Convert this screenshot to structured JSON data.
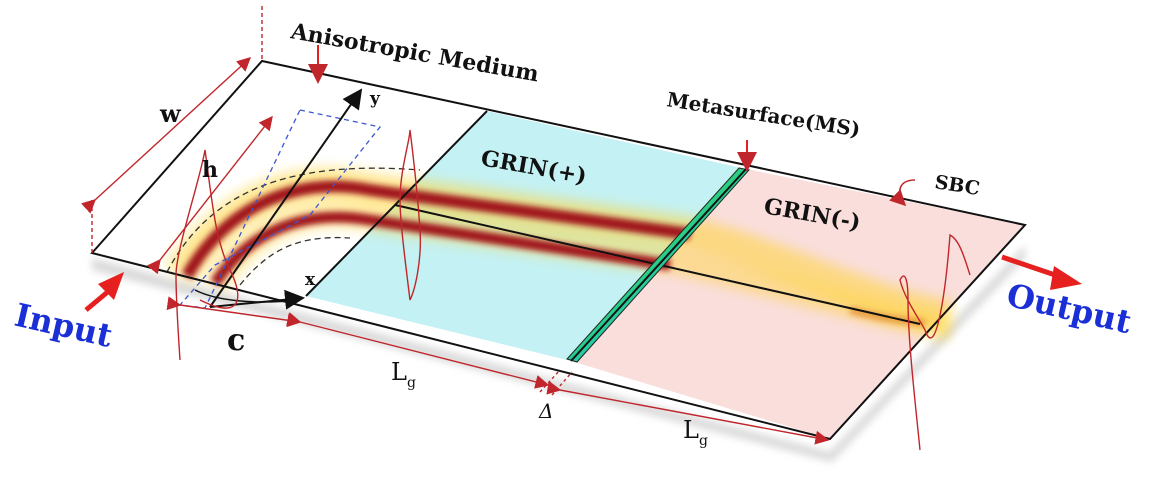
{
  "labels": {
    "anisotropic_medium": "Anisotropic Medium",
    "grin_plus": "GRIN(+)",
    "grin_minus": "GRIN(-)",
    "metasurface": "Metasurface(MS)",
    "sbc": "SBC",
    "input": "Input",
    "output": "Output",
    "w": "w",
    "h": "h",
    "x": "x",
    "y": "y",
    "c": "c",
    "lg_1": "L",
    "lg_1_sub": "g",
    "delta": "Δ",
    "lg_2": "L",
    "lg_2_sub": "g"
  },
  "colors": {
    "grin_plus_fill": "#c4f1f3",
    "grin_minus_fill": "#f9dedc",
    "beam_core": "#a0151a",
    "beam_glow": "#ffd43a",
    "dimension_line": "#c0262b",
    "arrow_red": "#e61f1f",
    "text_blue": "#1a2fd6",
    "aux_dash_blue": "#3a57d0"
  }
}
